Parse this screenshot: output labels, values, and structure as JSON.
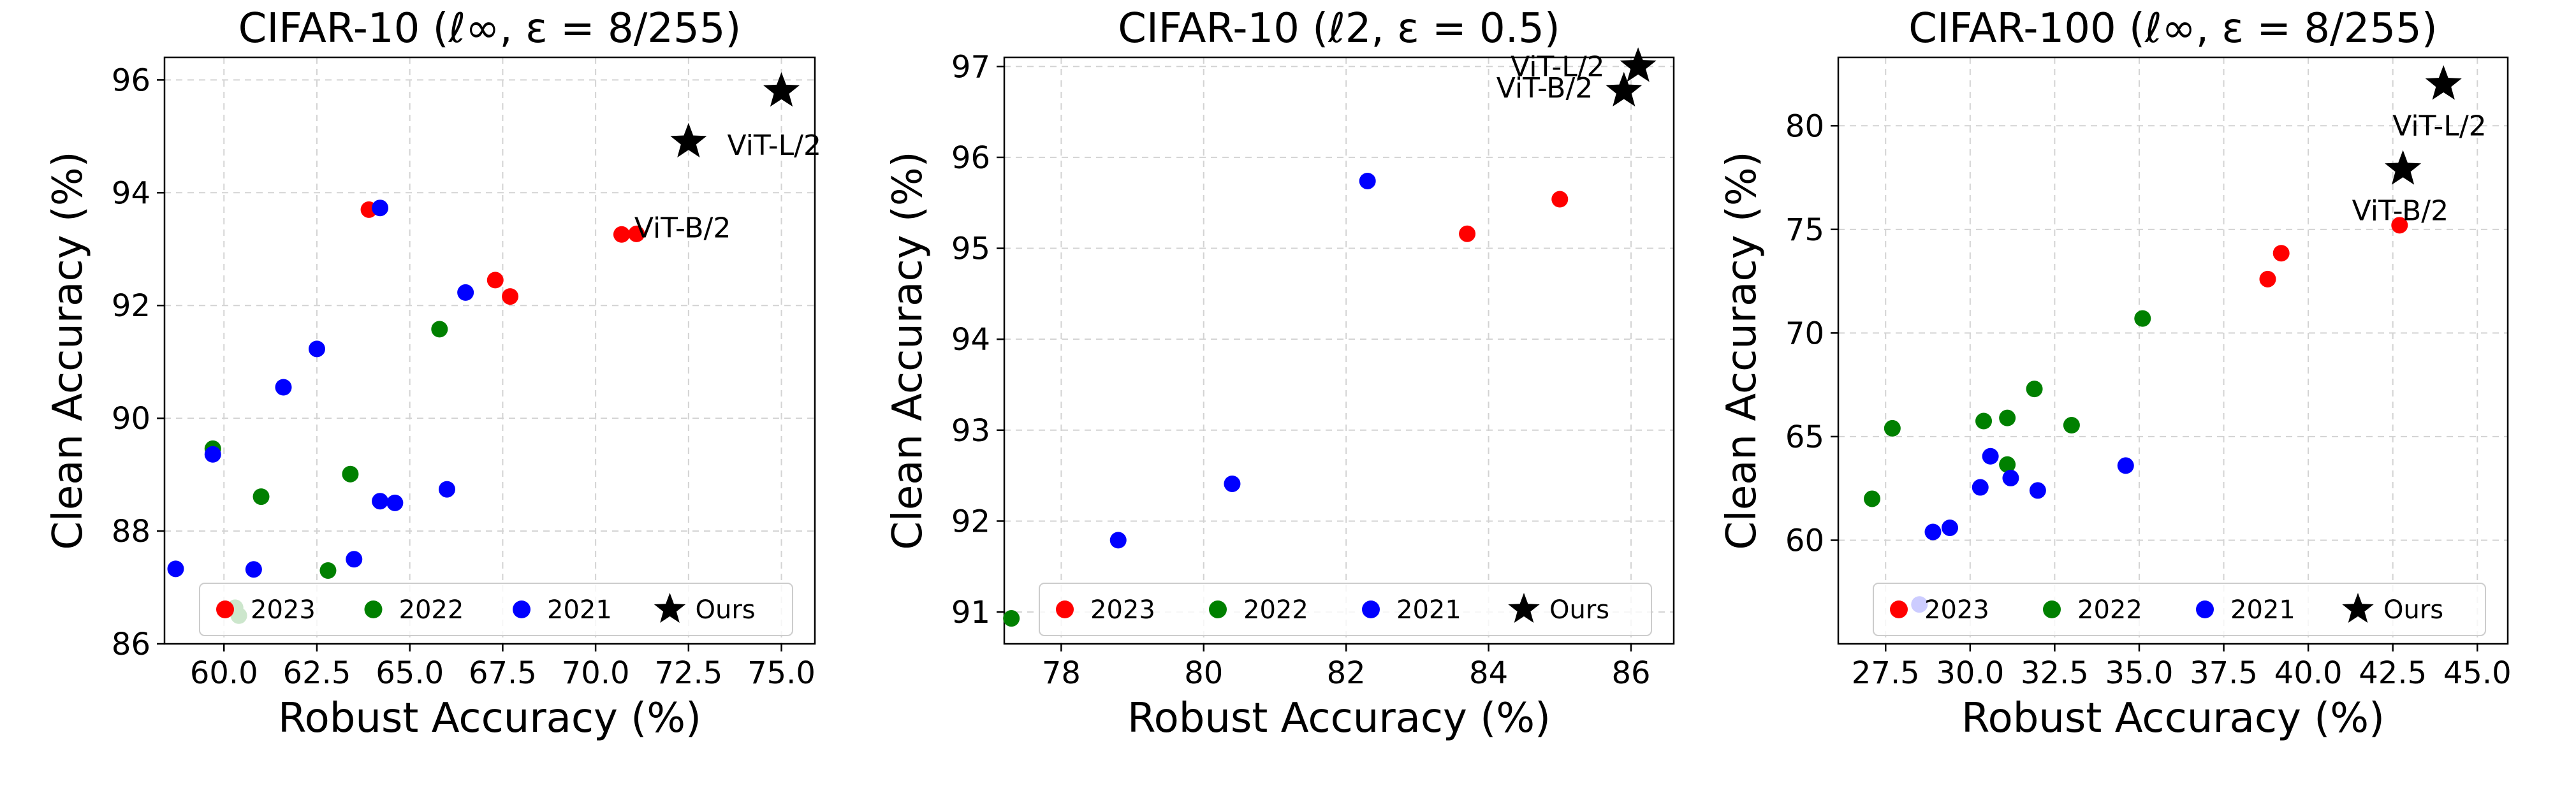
{
  "colors": {
    "2023": "#ff0000",
    "2022": "#008000",
    "2021": "#0000ff",
    "ours": "#000000",
    "grid": "#d3d3d3"
  },
  "chart_data": [
    {
      "type": "scatter",
      "title": "CIFAR-10 (ℓ∞, ε = 8/255)",
      "xlabel": "Robust Accuracy (%)",
      "ylabel": "Clean Accuracy (%)",
      "xlim": [
        58.4,
        75.9
      ],
      "ylim": [
        86,
        96.4
      ],
      "xticks": [
        60.0,
        62.5,
        65.0,
        67.5,
        70.0,
        72.5,
        75.0
      ],
      "xtick_labels": [
        "60.0",
        "62.5",
        "65.0",
        "67.5",
        "70.0",
        "72.5",
        "75.0"
      ],
      "yticks": [
        86,
        88,
        90,
        92,
        94,
        96
      ],
      "ytick_labels": [
        "86",
        "88",
        "90",
        "92",
        "94",
        "96"
      ],
      "grid": true,
      "legend_position": "bottom",
      "legend": [
        "2023",
        "2022",
        "2021",
        "Ours"
      ],
      "series": [
        {
          "name": "2023",
          "color": "#ff0000",
          "marker": "circle",
          "points": [
            [
              63.9,
              93.7
            ],
            [
              67.3,
              92.45
            ],
            [
              67.7,
              92.16
            ],
            [
              70.7,
              93.26
            ],
            [
              71.1,
              93.27
            ]
          ]
        },
        {
          "name": "2022",
          "color": "#008000",
          "marker": "circle",
          "points": [
            [
              59.7,
              89.46
            ],
            [
              61.0,
              88.61
            ],
            [
              63.4,
              89.01
            ],
            [
              62.8,
              87.3
            ],
            [
              65.8,
              91.58
            ],
            [
              60.3,
              86.64
            ],
            [
              60.4,
              86.5
            ]
          ]
        },
        {
          "name": "2021",
          "color": "#0000ff",
          "marker": "circle",
          "points": [
            [
              58.7,
              87.33
            ],
            [
              59.7,
              89.36
            ],
            [
              60.8,
              87.32
            ],
            [
              61.6,
              90.55
            ],
            [
              62.5,
              91.23
            ],
            [
              63.5,
              87.5
            ],
            [
              64.2,
              88.53
            ],
            [
              64.2,
              93.73
            ],
            [
              64.6,
              88.5
            ],
            [
              66.0,
              88.74
            ],
            [
              66.5,
              92.23
            ]
          ]
        },
        {
          "name": "Ours",
          "color": "#000000",
          "marker": "star",
          "points": [
            [
              72.5,
              94.9
            ],
            [
              75.0,
              95.8
            ]
          ],
          "point_labels": [
            "ViT-B/2",
            "ViT-L/2"
          ]
        }
      ]
    },
    {
      "type": "scatter",
      "title": "CIFAR-10 (ℓ2, ε = 0.5)",
      "xlabel": "Robust Accuracy (%)",
      "ylabel": "Clean Accuracy (%)",
      "xlim": [
        77.2,
        86.6
      ],
      "ylim": [
        90.65,
        97.1
      ],
      "xticks": [
        78,
        80,
        82,
        84,
        86
      ],
      "xtick_labels": [
        "78",
        "80",
        "82",
        "84",
        "86"
      ],
      "yticks": [
        91,
        92,
        93,
        94,
        95,
        96,
        97
      ],
      "ytick_labels": [
        "91",
        "92",
        "93",
        "94",
        "95",
        "96",
        "97"
      ],
      "grid": true,
      "legend_position": "bottom",
      "legend": [
        "2023",
        "2022",
        "2021",
        "Ours"
      ],
      "series": [
        {
          "name": "2023",
          "color": "#ff0000",
          "marker": "circle",
          "points": [
            [
              83.7,
              95.16
            ],
            [
              85.0,
              95.54
            ]
          ]
        },
        {
          "name": "2022",
          "color": "#008000",
          "marker": "circle",
          "points": [
            [
              77.3,
              90.93
            ]
          ]
        },
        {
          "name": "2021",
          "color": "#0000ff",
          "marker": "circle",
          "points": [
            [
              78.8,
              91.79
            ],
            [
              80.4,
              92.41
            ],
            [
              82.3,
              95.74
            ]
          ]
        },
        {
          "name": "Ours",
          "color": "#000000",
          "marker": "star",
          "points": [
            [
              85.9,
              96.73
            ],
            [
              86.1,
              97.0
            ]
          ],
          "point_labels": [
            "ViT-B/2",
            "ViT-L/2"
          ]
        }
      ]
    },
    {
      "type": "scatter",
      "title": "CIFAR-100 (ℓ∞, ε = 8/255)",
      "xlabel": "Robust Accuracy (%)",
      "ylabel": "Clean Accuracy (%)",
      "xlim": [
        26.1,
        45.9
      ],
      "ylim": [
        55,
        83.3
      ],
      "xticks": [
        27.5,
        30.0,
        32.5,
        35.0,
        37.5,
        40.0,
        42.5,
        45.0
      ],
      "xtick_labels": [
        "27.5",
        "30.0",
        "32.5",
        "35.0",
        "37.5",
        "40.0",
        "42.5",
        "45.0"
      ],
      "yticks": [
        60,
        65,
        70,
        75,
        80
      ],
      "ytick_labels": [
        "60",
        "65",
        "70",
        "75",
        "80"
      ],
      "grid": true,
      "legend_position": "bottom",
      "legend": [
        "2023",
        "2022",
        "2021",
        "Ours"
      ],
      "series": [
        {
          "name": "2023",
          "color": "#ff0000",
          "marker": "circle",
          "points": [
            [
              38.8,
              72.6
            ],
            [
              39.2,
              73.85
            ],
            [
              42.7,
              75.2
            ]
          ]
        },
        {
          "name": "2022",
          "color": "#008000",
          "marker": "circle",
          "points": [
            [
              27.1,
              62.0
            ],
            [
              27.7,
              65.4
            ],
            [
              30.4,
              65.75
            ],
            [
              31.1,
              63.65
            ],
            [
              31.1,
              65.9
            ],
            [
              31.9,
              67.3
            ],
            [
              33.0,
              65.55
            ],
            [
              35.1,
              70.7
            ]
          ]
        },
        {
          "name": "2021",
          "color": "#0000ff",
          "marker": "circle",
          "points": [
            [
              28.5,
              56.9
            ],
            [
              28.9,
              60.4
            ],
            [
              29.4,
              60.6
            ],
            [
              30.3,
              62.55
            ],
            [
              30.6,
              64.05
            ],
            [
              31.2,
              63.0
            ],
            [
              32.0,
              62.4
            ],
            [
              34.6,
              63.6
            ]
          ]
        },
        {
          "name": "Ours",
          "color": "#000000",
          "marker": "star",
          "points": [
            [
              42.8,
              77.9
            ],
            [
              44.0,
              82.0
            ]
          ],
          "point_labels": [
            "ViT-B/2",
            "ViT-L/2"
          ]
        }
      ]
    }
  ]
}
